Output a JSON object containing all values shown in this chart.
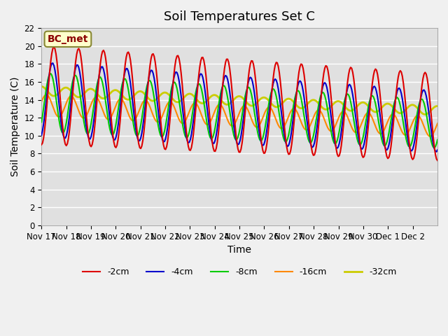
{
  "title": "Soil Temperatures Set C",
  "xlabel": "Time",
  "ylabel": "Soil Temperature (C)",
  "ylim": [
    0,
    22
  ],
  "yticks": [
    0,
    2,
    4,
    6,
    8,
    10,
    12,
    14,
    16,
    18,
    20,
    22
  ],
  "xtick_labels": [
    "Nov 17",
    "Nov 18",
    "Nov 19",
    "Nov 20",
    "Nov 21",
    "Nov 22",
    "Nov 23",
    "Nov 24",
    "Nov 25",
    "Nov 26",
    "Nov 27",
    "Nov 28",
    "Nov 29",
    "Nov 30",
    "Dec 1",
    "Dec 2"
  ],
  "legend_labels": [
    "-2cm",
    "-4cm",
    "-8cm",
    "-16cm",
    "-32cm"
  ],
  "legend_colors": [
    "#dd0000",
    "#0000cc",
    "#00cc00",
    "#ff8800",
    "#cccc00"
  ],
  "line_widths": [
    1.5,
    1.5,
    1.5,
    1.5,
    2.0
  ],
  "annotation_text": "BC_met",
  "annotation_bg": "#ffffcc",
  "annotation_border": "#888833",
  "fig_bg": "#f0f0f0",
  "plot_bg": "#e0e0e0",
  "grid_color": "#ffffff",
  "title_fontsize": 13,
  "label_fontsize": 10,
  "tick_fontsize": 8.5,
  "n_days": 16
}
